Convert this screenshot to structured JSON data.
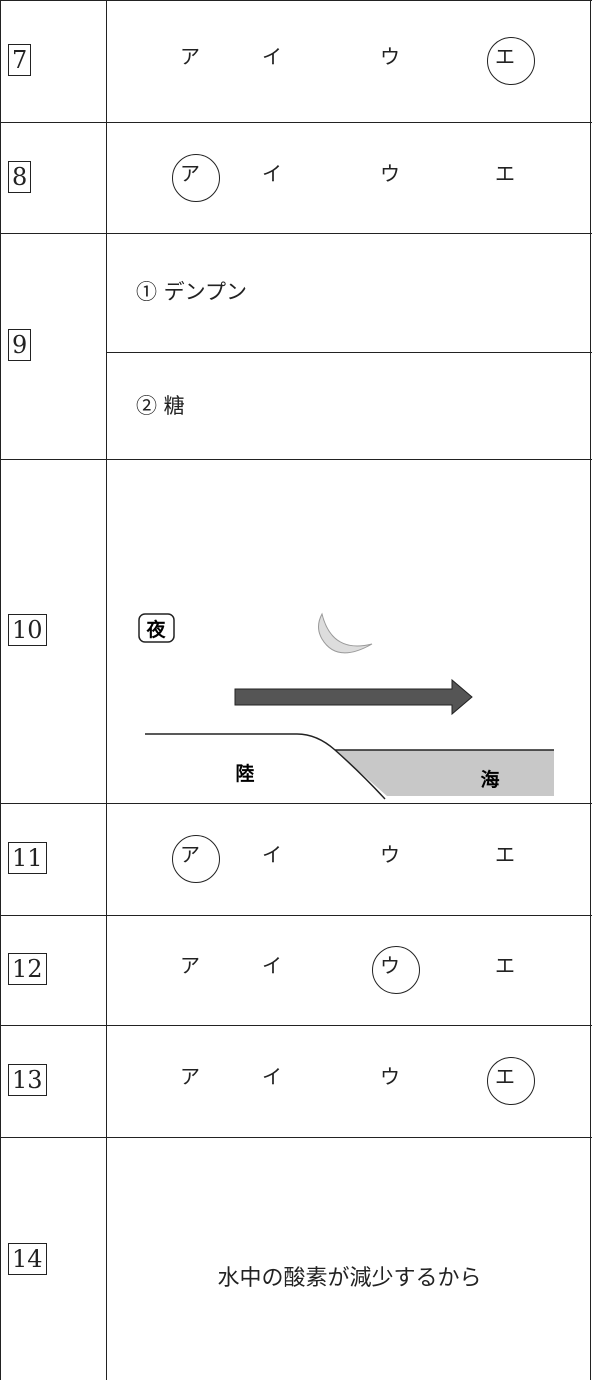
{
  "rows": [
    {
      "number": "7",
      "choices": [
        "ア",
        "イ",
        "ウ",
        "エ"
      ],
      "circled": 3
    },
    {
      "number": "8",
      "choices": [
        "ア",
        "イ",
        "ウ",
        "エ"
      ],
      "circled": 0
    },
    {
      "number": "9",
      "answers": [
        "① デンプン",
        "② 糖"
      ]
    },
    {
      "number": "10",
      "diagram": {
        "time": "夜",
        "land": "陸",
        "sea": "海"
      }
    },
    {
      "number": "11",
      "choices": [
        "ア",
        "イ",
        "ウ",
        "エ"
      ],
      "circled": 0
    },
    {
      "number": "12",
      "choices": [
        "ア",
        "イ",
        "ウ",
        "エ"
      ],
      "circled": 2
    },
    {
      "number": "13",
      "choices": [
        "ア",
        "イ",
        "ウ",
        "エ"
      ],
      "circled": 3
    },
    {
      "number": "14",
      "answer": "水中の酸素が減少するから"
    }
  ]
}
